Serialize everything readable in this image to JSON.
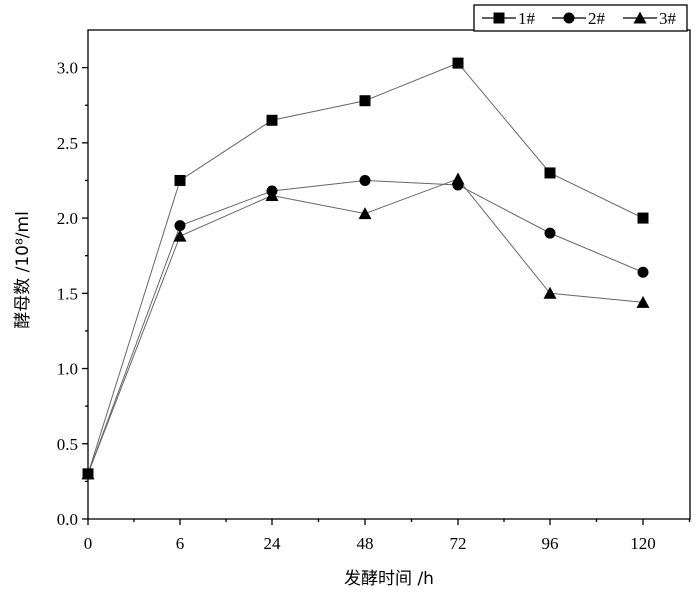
{
  "chart_data": {
    "type": "line",
    "title": "",
    "xlabel": "发酵时间 /h",
    "ylabel": "酵母数 /10⁸/ml",
    "categories": [
      "0",
      "6",
      "24",
      "48",
      "72",
      "96",
      "120"
    ],
    "ylim": [
      0,
      3.25
    ],
    "yticks": [
      0.0,
      0.5,
      1.0,
      1.5,
      2.0,
      2.5,
      3.0
    ],
    "ytick_labels": [
      "0.0",
      "0.5",
      "1.0",
      "1.5",
      "2.0",
      "2.5",
      "3.0"
    ],
    "grid": false,
    "legend_position": "top-right",
    "series": [
      {
        "name": "1#",
        "marker": "square",
        "values": [
          0.3,
          2.25,
          2.65,
          2.78,
          3.03,
          2.3,
          2.0
        ]
      },
      {
        "name": "2#",
        "marker": "circle",
        "values": [
          0.3,
          1.95,
          2.18,
          2.25,
          2.22,
          1.9,
          1.64
        ]
      },
      {
        "name": "3#",
        "marker": "triangle",
        "values": [
          0.3,
          1.88,
          2.15,
          2.03,
          2.26,
          1.5,
          1.44
        ]
      }
    ],
    "colors": {
      "marker": "#000000",
      "line": "#666666"
    }
  }
}
